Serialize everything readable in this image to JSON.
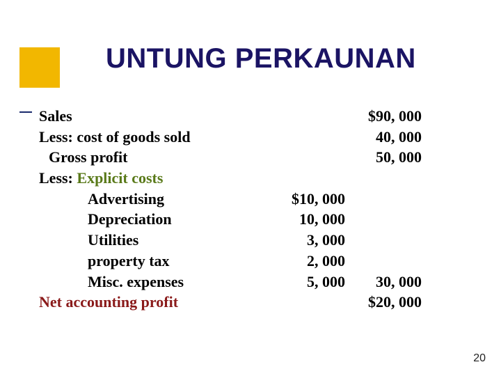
{
  "title": "UNTUNG PERKAUNAN",
  "rows": {
    "sales": {
      "label": "Sales",
      "a": "",
      "b": "$90, 000"
    },
    "cogs": {
      "label": "Less: cost of goods sold",
      "a": "",
      "b": "40, 000"
    },
    "gross": {
      "label": "Gross profit",
      "a": "",
      "b": "50, 000"
    },
    "explicit": {
      "label_prefix": "Less: ",
      "label_em": "Explicit costs",
      "a": "",
      "b": ""
    },
    "adv": {
      "label": "Advertising",
      "a": "$10, 000",
      "b": ""
    },
    "dep": {
      "label": "Depreciation",
      "a": "10, 000",
      "b": ""
    },
    "util": {
      "label": "Utilities",
      "a": "3, 000",
      "b": ""
    },
    "ptax": {
      "label": "property tax",
      "a": "2, 000",
      "b": ""
    },
    "misc": {
      "label": "Misc. expenses",
      "a": "5, 000",
      "b": "30, 000"
    },
    "net": {
      "label": "Net accounting profit",
      "a": "",
      "b": "$20, 000"
    }
  },
  "page_number": "20",
  "colors": {
    "title": "#1b1464",
    "accent": "#f2b700",
    "explicit_label": "#5a7a1a",
    "net_label": "#8a1a1a"
  }
}
